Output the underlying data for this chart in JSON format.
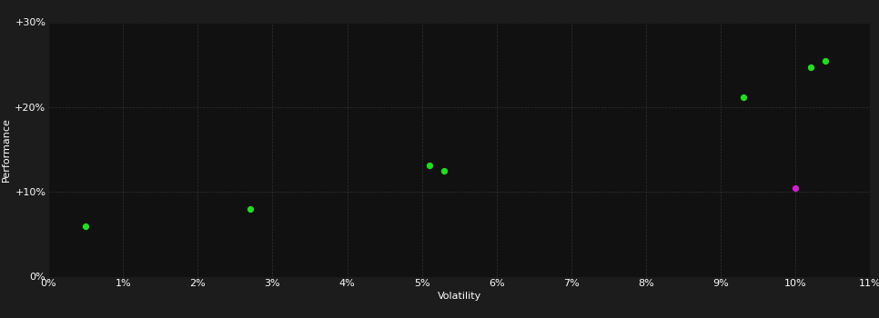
{
  "background_color": "#1c1c1c",
  "plot_bg_color": "#111111",
  "grid_color": "#3a3a3a",
  "text_color": "#ffffff",
  "xlabel": "Volatility",
  "ylabel": "Performance",
  "xlim": [
    0,
    0.11
  ],
  "ylim": [
    0,
    0.3
  ],
  "xticks": [
    0.0,
    0.01,
    0.02,
    0.03,
    0.04,
    0.05,
    0.06,
    0.07,
    0.08,
    0.09,
    0.1,
    0.11
  ],
  "yticks": [
    0.0,
    0.1,
    0.2,
    0.3
  ],
  "ytick_labels": [
    "0%",
    "+10%",
    "+20%",
    "+30%"
  ],
  "xtick_labels": [
    "0%",
    "1%",
    "2%",
    "3%",
    "4%",
    "5%",
    "6%",
    "7%",
    "8%",
    "9%",
    "10%",
    "11%"
  ],
  "green_points": [
    [
      0.005,
      0.06
    ],
    [
      0.027,
      0.08
    ],
    [
      0.051,
      0.131
    ],
    [
      0.053,
      0.125
    ],
    [
      0.093,
      0.212
    ],
    [
      0.102,
      0.247
    ],
    [
      0.104,
      0.255
    ]
  ],
  "purple_points": [
    [
      0.1,
      0.105
    ]
  ],
  "green_color": "#22dd22",
  "purple_color": "#cc22cc",
  "marker_size": 18,
  "font_size": 8
}
